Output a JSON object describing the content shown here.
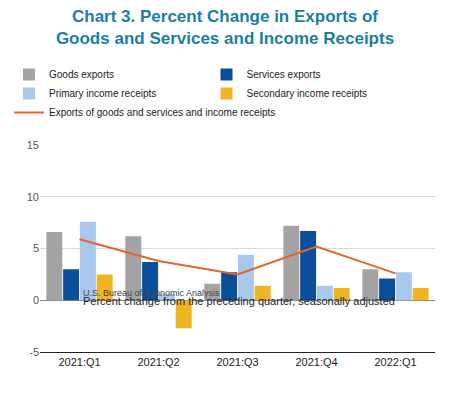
{
  "chart_data": {
    "type": "bar",
    "title": "Chart 3. Percent Change in Exports of Goods and Services and Income Receipts",
    "y_label": "Percent change from the preceding quarter, seasonally adjusted",
    "source": "U.S. Bureau of Economic Analysis",
    "categories": [
      "2021:Q1",
      "2021:Q2",
      "2021:Q3",
      "2021:Q4",
      "2022:Q1"
    ],
    "series": [
      {
        "name": "Goods exports",
        "color": "#a3a3a3",
        "values": [
          6.6,
          6.2,
          1.6,
          7.2,
          3.0
        ]
      },
      {
        "name": "Services exports",
        "color": "#0b4f9c",
        "values": [
          3.0,
          3.7,
          2.7,
          6.7,
          2.1
        ]
      },
      {
        "name": "Primary income receipts",
        "color": "#a9c8ec",
        "values": [
          7.6,
          0.6,
          4.4,
          1.4,
          2.7
        ]
      },
      {
        "name": "Secondary income receipts",
        "color": "#f0b321",
        "values": [
          2.5,
          -2.7,
          1.4,
          1.2,
          1.2
        ]
      },
      {
        "name": "Exports of goods and services and income receipts",
        "color": "#e0672a",
        "type": "line",
        "values": [
          5.9,
          3.8,
          2.5,
          5.2,
          2.6
        ]
      }
    ],
    "ylim": [
      -5,
      15
    ],
    "yticks": [
      -5,
      0,
      5,
      10,
      15
    ],
    "grid": true,
    "legend": "top"
  }
}
